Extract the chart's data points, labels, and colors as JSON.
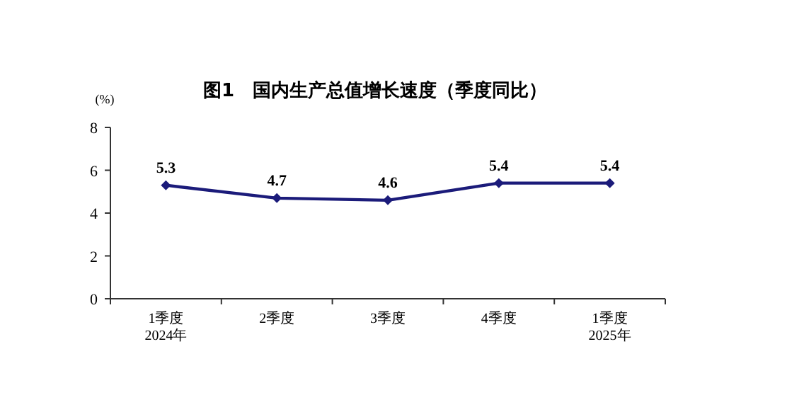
{
  "chart_data": {
    "type": "line",
    "title": "图1　国内生产总值增长速度（季度同比）",
    "ylabel": "(%)",
    "categories": [
      "1季度\n2024年",
      "2季度",
      "3季度",
      "4季度",
      "1季度\n2025年"
    ],
    "series": [
      {
        "color": "#1b1b7a",
        "values": [
          5.3,
          4.7,
          4.6,
          5.4,
          5.4
        ]
      }
    ],
    "ylim": [
      0,
      8
    ],
    "yticks": [
      0,
      2,
      4,
      6,
      8
    ],
    "data_labels": true,
    "marker": "diamond"
  }
}
